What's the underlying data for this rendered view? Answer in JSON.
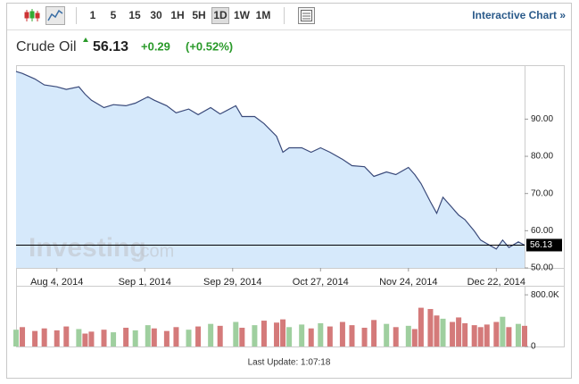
{
  "toolbar": {
    "intervals": [
      "1",
      "5",
      "15",
      "30",
      "1H",
      "5H",
      "1D",
      "1W",
      "1M"
    ],
    "link": "Interactive Chart »"
  },
  "header": {
    "title": "Crude Oil",
    "price": 56.13,
    "change": "+0.29",
    "change_pct": "(+0.52%)"
  },
  "watermark": {
    "brand": "Investing",
    "suffix": ".com"
  },
  "footer": "Last Update: 1:07:18",
  "chart_data": {
    "type": "area",
    "color": "#3a4a7a",
    "fill": "#d6e9fb",
    "x": [
      "2014-07-22",
      "2014-07-24",
      "2014-07-28",
      "2014-07-31",
      "2014-08-04",
      "2014-08-07",
      "2014-08-11",
      "2014-08-13",
      "2014-08-15",
      "2014-08-19",
      "2014-08-22",
      "2014-08-26",
      "2014-08-29",
      "2014-09-02",
      "2014-09-04",
      "2014-09-08",
      "2014-09-11",
      "2014-09-15",
      "2014-09-18",
      "2014-09-22",
      "2014-09-25",
      "2014-09-30",
      "2014-10-02",
      "2014-10-06",
      "2014-10-09",
      "2014-10-13",
      "2014-10-15",
      "2014-10-17",
      "2014-10-21",
      "2014-10-24",
      "2014-10-27",
      "2014-10-30",
      "2014-11-03",
      "2014-11-06",
      "2014-11-10",
      "2014-11-13",
      "2014-11-17",
      "2014-11-20",
      "2014-11-24",
      "2014-11-26",
      "2014-11-28",
      "2014-12-01",
      "2014-12-03",
      "2014-12-05",
      "2014-12-08",
      "2014-12-10",
      "2014-12-12",
      "2014-12-15",
      "2014-12-17",
      "2014-12-19",
      "2014-12-22",
      "2014-12-24",
      "2014-12-26",
      "2014-12-29",
      "2014-12-31"
    ],
    "values": [
      102.8,
      102.3,
      100.8,
      99.2,
      98.7,
      98,
      98.7,
      96.7,
      95.1,
      93.1,
      93.9,
      93.6,
      94.3,
      96,
      95.1,
      93.6,
      91.7,
      92.7,
      91.2,
      93.1,
      91.4,
      93.6,
      90.7,
      90.7,
      88.8,
      85.4,
      81.1,
      82.3,
      82.3,
      81.1,
      82.3,
      81.1,
      79.2,
      77.5,
      77.2,
      74.6,
      75.8,
      75.1,
      77,
      75.1,
      72.7,
      67.8,
      64.7,
      69,
      66.1,
      64.2,
      63,
      59.9,
      57.5,
      56.5,
      55.1,
      57.5,
      55.5,
      57,
      56.13
    ],
    "xlim": [
      "2014-07-22",
      "2014-12-31"
    ],
    "xticks": [
      {
        "value": "2014-08-04",
        "label": "Aug 4, 2014"
      },
      {
        "value": "2014-09-01",
        "label": "Sep 1, 2014"
      },
      {
        "value": "2014-09-29",
        "label": "Sep 29, 2014"
      },
      {
        "value": "2014-10-27",
        "label": "Oct 27, 2014"
      },
      {
        "value": "2014-11-24",
        "label": "Nov 24, 2014"
      },
      {
        "value": "2014-12-22",
        "label": "Dec 22, 2014"
      }
    ],
    "ylim": [
      50,
      104.5
    ],
    "yticks": [
      {
        "value": 50,
        "label": "50.00"
      },
      {
        "value": 60,
        "label": "60.00"
      },
      {
        "value": 70,
        "label": "70.00"
      },
      {
        "value": 80,
        "label": "80.00"
      },
      {
        "value": 90,
        "label": "90.00"
      }
    ],
    "volume": {
      "up_color": "#9fcf9f",
      "down_color": "#d47a7a",
      "values": [
        260000,
        300000,
        240000,
        280000,
        250000,
        310000,
        270000,
        200000,
        230000,
        260000,
        220000,
        290000,
        250000,
        330000,
        280000,
        240000,
        300000,
        260000,
        310000,
        350000,
        320000,
        380000,
        290000,
        330000,
        400000,
        370000,
        420000,
        300000,
        340000,
        280000,
        360000,
        310000,
        380000,
        330000,
        290000,
        410000,
        350000,
        300000,
        320000,
        270000,
        600000,
        580000,
        480000,
        430000,
        380000,
        450000,
        360000,
        330000,
        300000,
        340000,
        380000,
        460000,
        300000,
        350000,
        320000
      ],
      "ylim": [
        0,
        940000
      ],
      "yticks": [
        0,
        {
          "value": 800000,
          "label": "800.0K"
        }
      ]
    }
  }
}
